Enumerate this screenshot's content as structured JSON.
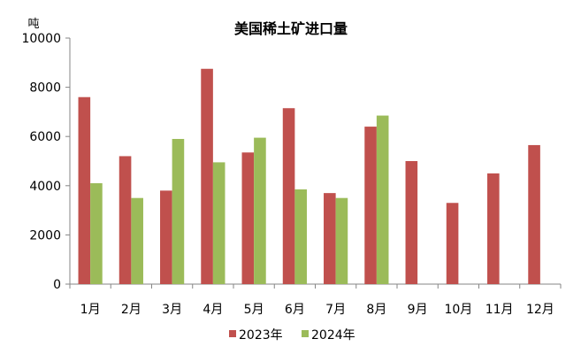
{
  "chart_data": {
    "type": "bar",
    "title": "美国稀土矿进口量",
    "unit_label": "吨",
    "categories": [
      "1月",
      "2月",
      "3月",
      "4月",
      "5月",
      "6月",
      "7月",
      "8月",
      "9月",
      "10月",
      "11月",
      "12月"
    ],
    "series": [
      {
        "name": "2023年",
        "color": "#c0504d",
        "values": [
          7600,
          5200,
          3800,
          8750,
          5350,
          7150,
          3700,
          6400,
          5000,
          3300,
          4500,
          5650
        ]
      },
      {
        "name": "2024年",
        "color": "#9bbb59",
        "values": [
          4100,
          3500,
          5900,
          4950,
          5950,
          3850,
          3500,
          6850,
          null,
          null,
          null,
          null
        ]
      }
    ],
    "ylim": [
      0,
      10000
    ],
    "yticks": [
      0,
      2000,
      4000,
      6000,
      8000,
      10000
    ],
    "grid": false,
    "legend_position": "bottom"
  }
}
